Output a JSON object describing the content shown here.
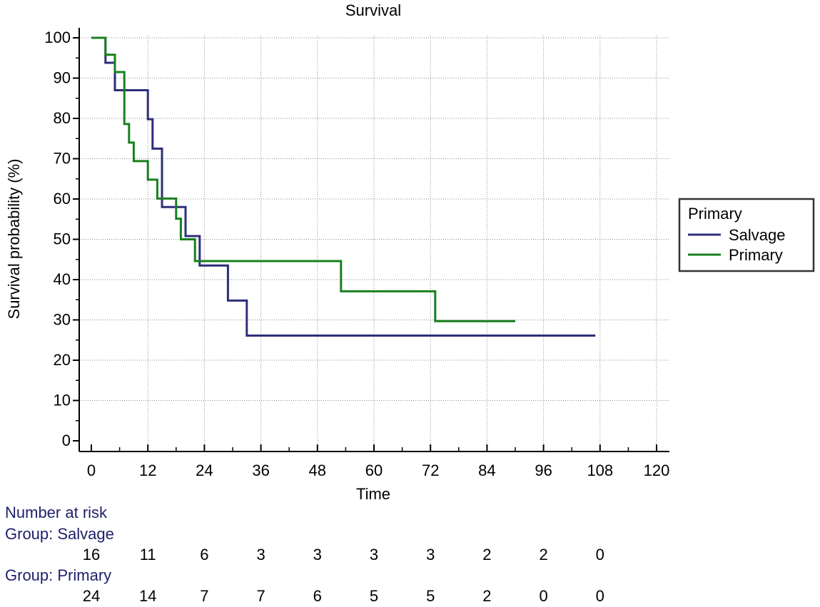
{
  "chart_data": {
    "type": "line",
    "title": "Survival",
    "xlabel": "Time",
    "ylabel": "Survival probability (%)",
    "xlim": [
      0,
      120
    ],
    "ylim": [
      0,
      100
    ],
    "x_ticks": [
      0,
      12,
      24,
      36,
      48,
      60,
      72,
      84,
      96,
      108,
      120
    ],
    "y_ticks": [
      0,
      10,
      20,
      30,
      40,
      50,
      60,
      70,
      80,
      90,
      100
    ],
    "grid": true,
    "step": true,
    "legend": {
      "title": "Primary",
      "position": "right",
      "entries": [
        "Salvage",
        "Primary"
      ]
    },
    "series": [
      {
        "name": "Salvage",
        "color": "#2e2e7a",
        "x": [
          0,
          3,
          5,
          12,
          13,
          15,
          20,
          23,
          29,
          33,
          107
        ],
        "y": [
          100,
          93.8,
          87,
          79.8,
          72.5,
          58,
          50.8,
          43.5,
          34.8,
          26.1,
          26.1
        ]
      },
      {
        "name": "Primary",
        "color": "#18801e",
        "x": [
          0,
          3,
          5,
          7,
          8,
          9,
          12,
          14,
          18,
          19,
          22,
          53,
          73,
          90
        ],
        "y": [
          100,
          95.8,
          91.5,
          78.6,
          74,
          69.4,
          64.8,
          60.1,
          55.1,
          50,
          44.6,
          37.1,
          29.7,
          29.7
        ]
      }
    ],
    "number_at_risk": {
      "title": "Number at risk",
      "times": [
        0,
        12,
        24,
        36,
        48,
        60,
        72,
        84,
        96,
        108
      ],
      "groups": [
        {
          "label": "Group: Salvage",
          "values": [
            "16",
            "11",
            "6",
            "3",
            "3",
            "3",
            "3",
            "2",
            "2",
            "0"
          ]
        },
        {
          "label": "Group: Primary",
          "values": [
            "24",
            "14",
            "7",
            "7",
            "6",
            "5",
            "5",
            "2",
            "0",
            "0"
          ]
        }
      ]
    }
  }
}
